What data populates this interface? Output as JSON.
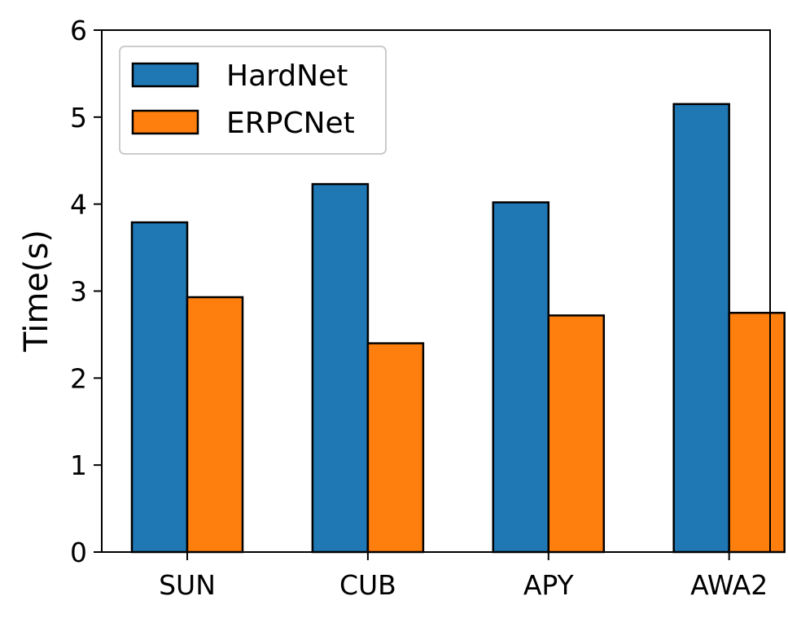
{
  "chart_data": {
    "type": "bar",
    "title": "",
    "xlabel": "",
    "ylabel": "Time(s)",
    "categories": [
      "SUN",
      "CUB",
      "APY",
      "AWA2"
    ],
    "series": [
      {
        "name": "HardNet",
        "color": "#1f77b4",
        "values": [
          3.79,
          4.23,
          4.02,
          5.15
        ]
      },
      {
        "name": "ERPCNet",
        "color": "#ff7f0e",
        "values": [
          2.93,
          2.4,
          2.72,
          2.75
        ]
      }
    ],
    "ylim": [
      0,
      6
    ],
    "yticks": [
      "0",
      "1",
      "2",
      "3",
      "4",
      "5",
      "6"
    ],
    "grid": false,
    "legend_position": "top-left"
  }
}
